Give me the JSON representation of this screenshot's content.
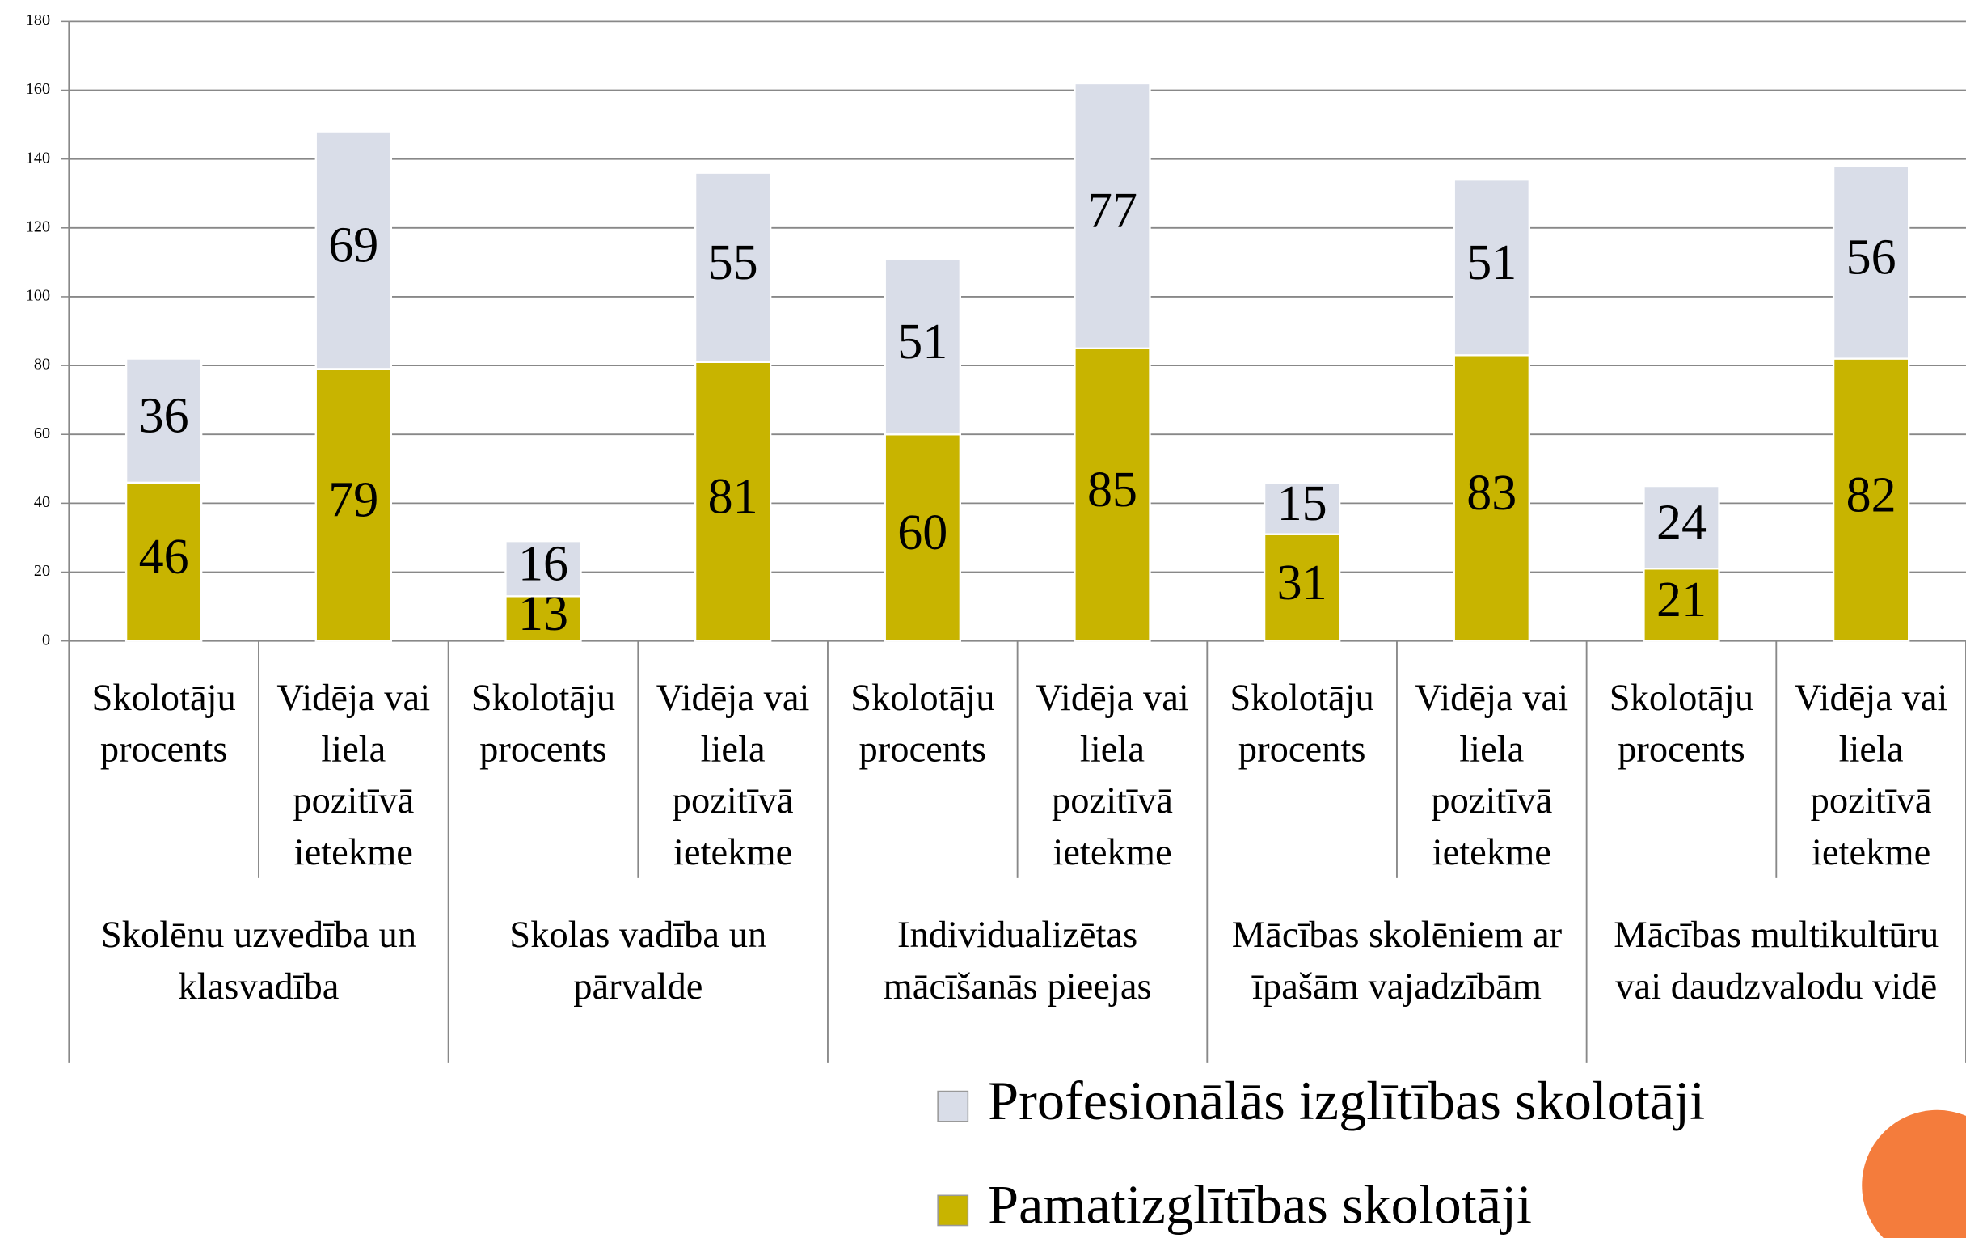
{
  "chart_data": {
    "type": "stacked_bar",
    "categories": [
      "Skolotāju procents",
      "Vidēja vai liela pozitīvā ietekme",
      "Skolotāju procents",
      "Vidēja vai liela pozitīvā ietekme",
      "Skolotāju procents",
      "Vidēja vai liela pozitīvā ietekme",
      "Skolotāju procents",
      "Vidēja vai liela pozitīvā ietekme",
      "Skolotāju procents",
      "Vidēja vai liela pozitīvā ietekme"
    ],
    "groups": [
      "Skolēnu uzvedība un klasvadība",
      "Skolas vadība un pārvalde",
      "Individualizētas mācīšanās pieejas",
      "Mācības skolēniem ar īpašām vajadzībām",
      "Mācības multikultūru vai daudzvalodu vidē"
    ],
    "series": [
      {
        "name": "Pamatizglītības skolotāji",
        "color": "#c8b400",
        "values": [
          46,
          79,
          13,
          81,
          60,
          85,
          31,
          83,
          21,
          82
        ]
      },
      {
        "name": "Profesionālās izglītības skolotāji",
        "color": "#d9dde8",
        "values": [
          36,
          69,
          16,
          55,
          51,
          77,
          15,
          51,
          24,
          56
        ]
      }
    ],
    "ylim": [
      0,
      180
    ],
    "yticks": [
      0,
      20,
      40,
      60,
      80,
      100,
      120,
      140,
      160,
      180
    ],
    "grid": true,
    "legend": "bottom-right"
  }
}
